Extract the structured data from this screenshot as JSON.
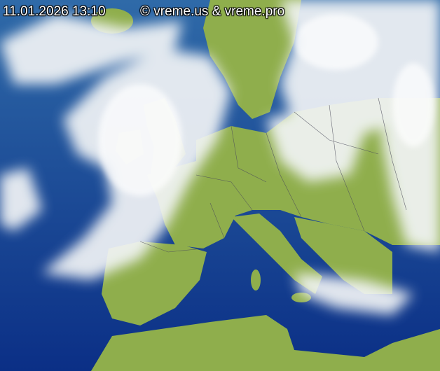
{
  "timestamp": "11.01.2026 13:10",
  "copyright": "© vreme.us & vreme.pro",
  "colors": {
    "sea": "#0d3a8a",
    "land": "#8fae4c",
    "cloud": "#f2f4f6",
    "borders": "#4a4a5a"
  }
}
